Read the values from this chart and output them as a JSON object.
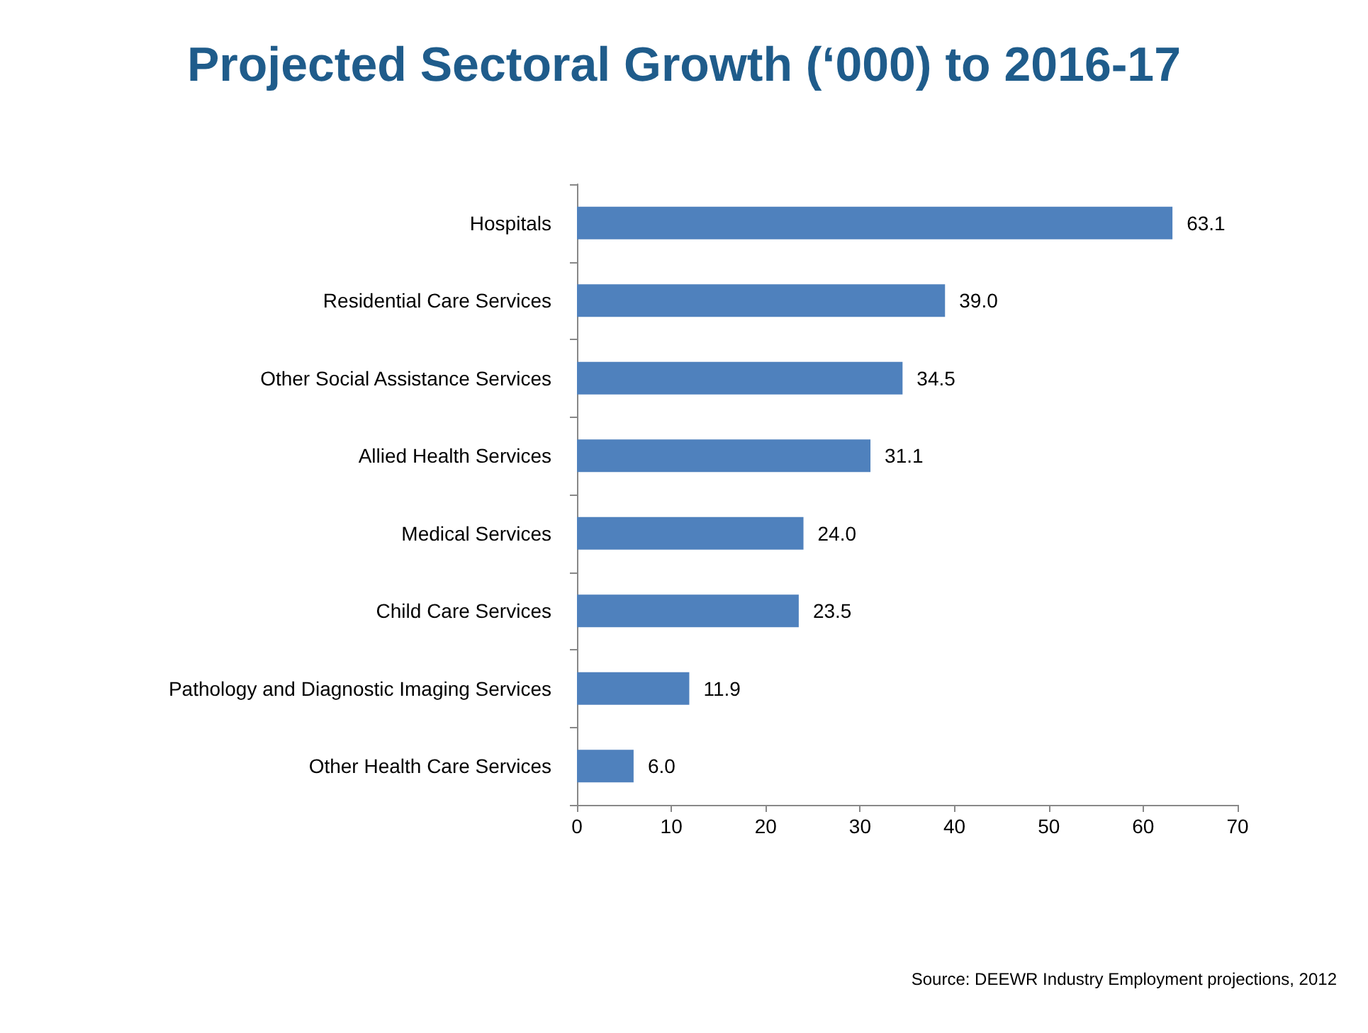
{
  "chart_data": {
    "type": "bar",
    "orientation": "horizontal",
    "title": "Projected Sectoral Growth (‘000) to 2016-17",
    "categories": [
      "Hospitals",
      "Residential Care Services",
      "Other Social Assistance Services",
      "Allied Health Services",
      "Medical Services",
      "Child Care Services",
      "Pathology and Diagnostic Imaging Services",
      "Other Health Care Services"
    ],
    "values": [
      63.1,
      39.0,
      34.5,
      31.1,
      24.0,
      23.5,
      11.9,
      6.0
    ],
    "value_labels": [
      "63.1",
      "39.0",
      "34.5",
      "31.1",
      "24.0",
      "23.5",
      "11.9",
      "6.0"
    ],
    "color": "#4f81bd",
    "xlim": [
      0,
      70
    ],
    "xticks": [
      0,
      10,
      20,
      30,
      40,
      50,
      60,
      70
    ],
    "grid": false,
    "annotations": [
      "Source: DEEWR Industry Employment projections, 2012"
    ]
  }
}
